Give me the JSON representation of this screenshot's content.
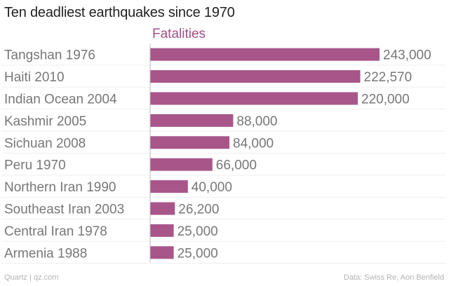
{
  "chart_data": {
    "type": "bar",
    "orientation": "horizontal",
    "title": "Ten deadliest earthquakes since 1970",
    "series_name": "Fatalities",
    "categories": [
      "Tangshan 1976",
      "Haiti 2010",
      "Indian Ocean 2004",
      "Kashmir 2005",
      "Sichuan 2008",
      "Peru 1970",
      "Northern Iran 1990",
      "Southeast Iran 2003",
      "Central Iran 1978",
      "Armenia 1988"
    ],
    "values": [
      243000,
      222570,
      220000,
      88000,
      84000,
      66000,
      40000,
      26200,
      25000,
      25000
    ],
    "value_labels": [
      "243,000",
      "222,570",
      "220,000",
      "88,000",
      "84,000",
      "66,000",
      "40,000",
      "26,200",
      "25,000",
      "25,000"
    ],
    "xlim": [
      0,
      250000
    ],
    "xlabel": "",
    "ylabel": "",
    "grid": false,
    "bar_color": "#a8568a"
  },
  "footer": {
    "source_left": "Quartz | qz.com",
    "source_right": "Data: Swiss Re, Aon Benfield"
  }
}
